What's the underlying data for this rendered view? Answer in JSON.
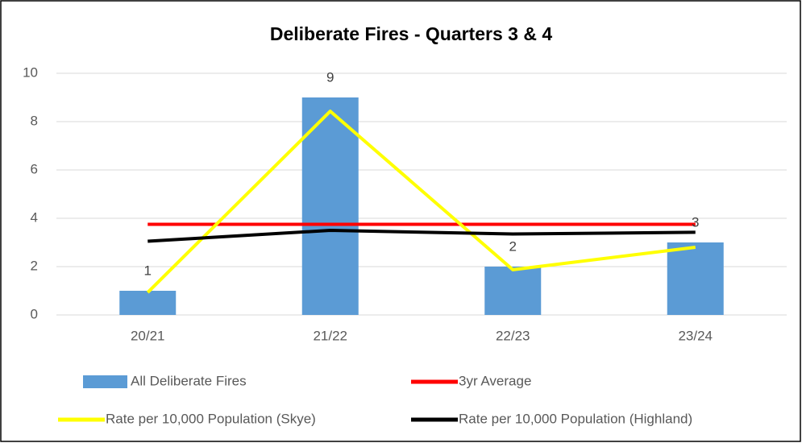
{
  "chart_data": {
    "type": "bar",
    "title": "Deliberate Fires - Quarters 3 & 4",
    "categories": [
      "20/21",
      "21/22",
      "22/23",
      "23/24"
    ],
    "series": [
      {
        "name": "All Deliberate Fires",
        "type": "bar",
        "color": "#5b9bd5",
        "values": [
          1,
          9,
          2,
          3
        ]
      },
      {
        "name": "3yr Average",
        "type": "line",
        "color": "#ff0000",
        "values": [
          3.75,
          3.75,
          3.75,
          3.75
        ]
      },
      {
        "name": "Rate per 10,000 Population (Skye)",
        "type": "line",
        "color": "#ffff00",
        "values": [
          0.93,
          8.43,
          1.87,
          2.8
        ]
      },
      {
        "name": "Rate per 10,000 Population (Highland)",
        "type": "line",
        "color": "#000000",
        "values": [
          3.05,
          3.5,
          3.35,
          3.42
        ]
      }
    ],
    "ylim": [
      0,
      10
    ],
    "yticks": [
      0,
      2,
      4,
      6,
      8,
      10
    ],
    "grid": true,
    "legend": "bottom"
  }
}
